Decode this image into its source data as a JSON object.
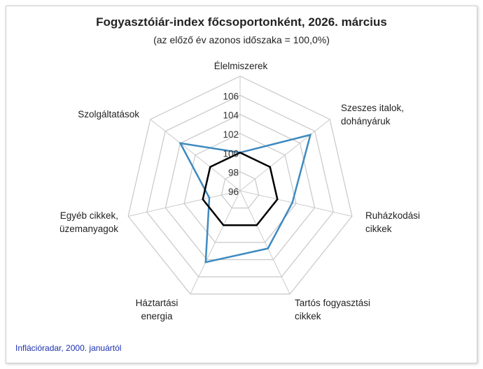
{
  "chart_data": {
    "type": "radar",
    "title": "Fogyasztóiár-index főcsoportonként, 2026. március",
    "subtitle": "(az előző év azonos időszaka = 100,0%)",
    "categories": [
      "Élelmiszerek",
      "Szeszes italok, dohányáruk",
      "Ruházkodási cikkek",
      "Tartós fogyasztási cikkek",
      "Háztartási energia",
      "Egyéb cikkek, üzemanyagok",
      "Szolgáltatások"
    ],
    "rlim": [
      96,
      108
    ],
    "ticks": [
      "96",
      "98",
      "100",
      "102",
      "104",
      "106"
    ],
    "tick_values": [
      96,
      98,
      100,
      102,
      104,
      106,
      108
    ],
    "grid": true,
    "series": [
      {
        "values": [
          100.0,
          105.4,
          101.6,
          102.7,
          104.3,
          99.3,
          104.0
        ],
        "color": "#3e8ac0"
      },
      {
        "values": [
          100,
          100,
          100,
          100,
          100,
          100,
          100
        ],
        "color": "#000000"
      }
    ]
  },
  "footer": "Inflációradar, 2000. januártól"
}
